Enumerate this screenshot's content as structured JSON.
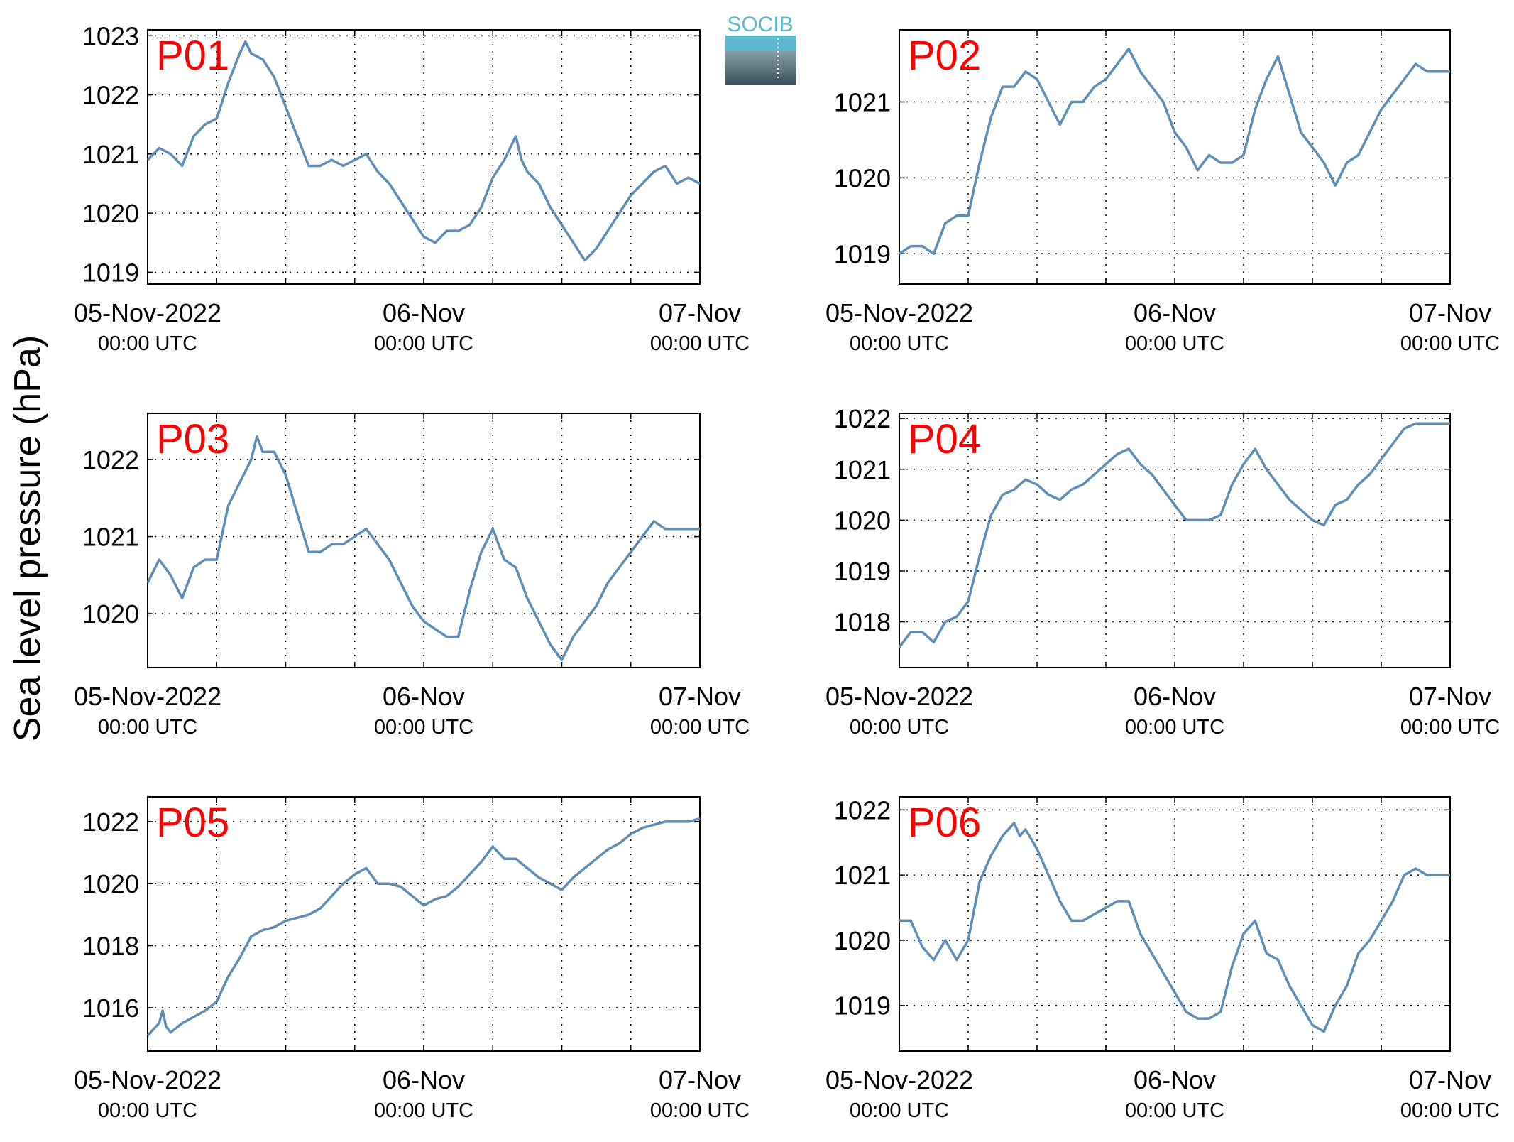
{
  "ylabel": "Sea level pressure (hPa)",
  "logo": {
    "text": "SOCIB",
    "color_top": "#5cb8cf",
    "color_bottom": "#3a4f5a"
  },
  "x_axis": {
    "ticks": [
      {
        "date": "05-Nov-2022",
        "time": "00:00 UTC"
      },
      {
        "date": "06-Nov",
        "time": "00:00 UTC"
      },
      {
        "date": "07-Nov",
        "time": "00:00 UTC"
      }
    ]
  },
  "chart_data": [
    {
      "type": "line",
      "panel": "P01",
      "line_color": "#5f8db5",
      "label_color": "#ff0000",
      "grid": true,
      "xlim": [
        0,
        48
      ],
      "ylim": [
        1018.8,
        1023.1
      ],
      "yticks": [
        1019,
        1020,
        1021,
        1022,
        1023
      ],
      "x": [
        0,
        1,
        2,
        3,
        4,
        5,
        6,
        7,
        8,
        8.5,
        9,
        10,
        11,
        12,
        13,
        14,
        15,
        16,
        17,
        18,
        19,
        20,
        21,
        22,
        23,
        24,
        25,
        26,
        27,
        28,
        29,
        30,
        31,
        32,
        32.5,
        33,
        34,
        35,
        36,
        37,
        38,
        39,
        40,
        41,
        42,
        43,
        44,
        45,
        46,
        47,
        48
      ],
      "y": [
        1020.9,
        1021.1,
        1021.0,
        1020.8,
        1021.3,
        1021.5,
        1021.6,
        1022.2,
        1022.7,
        1022.9,
        1022.7,
        1022.6,
        1022.3,
        1021.8,
        1021.3,
        1020.8,
        1020.8,
        1020.9,
        1020.8,
        1020.9,
        1021.0,
        1020.7,
        1020.5,
        1020.2,
        1019.9,
        1019.6,
        1019.5,
        1019.7,
        1019.7,
        1019.8,
        1020.1,
        1020.6,
        1020.9,
        1021.3,
        1020.9,
        1020.7,
        1020.5,
        1020.1,
        1019.8,
        1019.5,
        1019.2,
        1019.4,
        1019.7,
        1020.0,
        1020.3,
        1020.5,
        1020.7,
        1020.8,
        1020.5,
        1020.6,
        1020.5
      ]
    },
    {
      "type": "line",
      "panel": "P02",
      "line_color": "#5f8db5",
      "label_color": "#ff0000",
      "grid": true,
      "xlim": [
        0,
        48
      ],
      "ylim": [
        1018.6,
        1021.95
      ],
      "yticks": [
        1019,
        1020,
        1021
      ],
      "x": [
        0,
        1,
        2,
        3,
        4,
        5,
        6,
        7,
        8,
        9,
        10,
        11,
        12,
        13,
        14,
        15,
        16,
        17,
        18,
        19,
        20,
        21,
        22,
        23,
        24,
        25,
        26,
        27,
        28,
        29,
        30,
        31,
        32,
        33,
        34,
        35,
        36,
        37,
        38,
        39,
        40,
        41,
        42,
        43,
        44,
        45,
        46,
        47,
        48
      ],
      "y": [
        1019.0,
        1019.1,
        1019.1,
        1019.0,
        1019.4,
        1019.5,
        1019.5,
        1020.2,
        1020.8,
        1021.2,
        1021.2,
        1021.4,
        1021.3,
        1021.0,
        1020.7,
        1021.0,
        1021.0,
        1021.2,
        1021.3,
        1021.5,
        1021.7,
        1021.4,
        1021.2,
        1021.0,
        1020.6,
        1020.4,
        1020.1,
        1020.3,
        1020.2,
        1020.2,
        1020.3,
        1020.9,
        1021.3,
        1021.6,
        1021.1,
        1020.6,
        1020.4,
        1020.2,
        1019.9,
        1020.2,
        1020.3,
        1020.6,
        1020.9,
        1021.1,
        1021.3,
        1021.5,
        1021.4,
        1021.4,
        1021.4
      ]
    },
    {
      "type": "line",
      "panel": "P03",
      "line_color": "#5f8db5",
      "label_color": "#ff0000",
      "grid": true,
      "xlim": [
        0,
        48
      ],
      "ylim": [
        1019.3,
        1022.6
      ],
      "yticks": [
        1020,
        1021,
        1022
      ],
      "x": [
        0,
        1,
        2,
        3,
        4,
        5,
        6,
        7,
        8,
        9,
        9.5,
        10,
        11,
        12,
        13,
        14,
        15,
        16,
        17,
        18,
        19,
        20,
        21,
        22,
        23,
        24,
        25,
        26,
        27,
        28,
        29,
        30,
        31,
        32,
        33,
        34,
        35,
        36,
        37,
        38,
        39,
        40,
        41,
        42,
        43,
        44,
        45,
        46,
        47,
        48
      ],
      "y": [
        1020.4,
        1020.7,
        1020.5,
        1020.2,
        1020.6,
        1020.7,
        1020.7,
        1021.4,
        1021.7,
        1022.0,
        1022.3,
        1022.1,
        1022.1,
        1021.8,
        1021.3,
        1020.8,
        1020.8,
        1020.9,
        1020.9,
        1021.0,
        1021.1,
        1020.9,
        1020.7,
        1020.4,
        1020.1,
        1019.9,
        1019.8,
        1019.7,
        1019.7,
        1020.3,
        1020.8,
        1021.1,
        1020.7,
        1020.6,
        1020.2,
        1019.9,
        1019.6,
        1019.4,
        1019.7,
        1019.9,
        1020.1,
        1020.4,
        1020.6,
        1020.8,
        1021.0,
        1021.2,
        1021.1,
        1021.1,
        1021.1,
        1021.1
      ]
    },
    {
      "type": "line",
      "panel": "P04",
      "line_color": "#5f8db5",
      "label_color": "#ff0000",
      "grid": true,
      "xlim": [
        0,
        48
      ],
      "ylim": [
        1017.1,
        1022.1
      ],
      "yticks": [
        1018,
        1019,
        1020,
        1021,
        1022
      ],
      "x": [
        0,
        1,
        2,
        3,
        4,
        5,
        6,
        7,
        8,
        9,
        10,
        11,
        12,
        13,
        14,
        15,
        16,
        17,
        18,
        19,
        20,
        21,
        22,
        23,
        24,
        25,
        26,
        27,
        28,
        29,
        30,
        31,
        32,
        33,
        34,
        35,
        36,
        37,
        38,
        39,
        40,
        41,
        42,
        43,
        44,
        45,
        46,
        47,
        48
      ],
      "y": [
        1017.5,
        1017.8,
        1017.8,
        1017.6,
        1018.0,
        1018.1,
        1018.4,
        1019.3,
        1020.1,
        1020.5,
        1020.6,
        1020.8,
        1020.7,
        1020.5,
        1020.4,
        1020.6,
        1020.7,
        1020.9,
        1021.1,
        1021.3,
        1021.4,
        1021.1,
        1020.9,
        1020.6,
        1020.3,
        1020.0,
        1020.0,
        1020.0,
        1020.1,
        1020.7,
        1021.1,
        1021.4,
        1021.0,
        1020.7,
        1020.4,
        1020.2,
        1020.0,
        1019.9,
        1020.3,
        1020.4,
        1020.7,
        1020.9,
        1021.2,
        1021.5,
        1021.8,
        1021.9,
        1021.9,
        1021.9,
        1021.9
      ]
    },
    {
      "type": "line",
      "panel": "P05",
      "line_color": "#5f8db5",
      "label_color": "#ff0000",
      "grid": true,
      "xlim": [
        0,
        48
      ],
      "ylim": [
        1014.6,
        1022.8
      ],
      "yticks": [
        1016,
        1018,
        1020,
        1022
      ],
      "x": [
        0,
        1,
        1.3,
        1.6,
        2,
        3,
        4,
        5,
        6,
        7,
        8,
        9,
        10,
        11,
        12,
        13,
        14,
        15,
        16,
        17,
        18,
        19,
        20,
        21,
        22,
        23,
        24,
        25,
        26,
        27,
        28,
        29,
        30,
        31,
        32,
        33,
        34,
        35,
        36,
        37,
        38,
        39,
        40,
        41,
        42,
        43,
        44,
        45,
        46,
        47,
        48
      ],
      "y": [
        1015.1,
        1015.5,
        1015.9,
        1015.4,
        1015.2,
        1015.5,
        1015.7,
        1015.9,
        1016.2,
        1017.0,
        1017.6,
        1018.3,
        1018.5,
        1018.6,
        1018.8,
        1018.9,
        1019.0,
        1019.2,
        1019.6,
        1020.0,
        1020.3,
        1020.5,
        1020.0,
        1020.0,
        1019.9,
        1019.6,
        1019.3,
        1019.5,
        1019.6,
        1019.9,
        1020.3,
        1020.7,
        1021.2,
        1020.8,
        1020.8,
        1020.5,
        1020.2,
        1020.0,
        1019.8,
        1020.2,
        1020.5,
        1020.8,
        1021.1,
        1021.3,
        1021.6,
        1021.8,
        1021.9,
        1022.0,
        1022.0,
        1022.0,
        1022.1
      ]
    },
    {
      "type": "line",
      "panel": "P06",
      "line_color": "#5f8db5",
      "label_color": "#ff0000",
      "grid": true,
      "xlim": [
        0,
        48
      ],
      "ylim": [
        1018.3,
        1022.2
      ],
      "yticks": [
        1019,
        1020,
        1021,
        1022
      ],
      "x": [
        0,
        1,
        2,
        3,
        4,
        5,
        6,
        7,
        8,
        9,
        10,
        10.5,
        11,
        12,
        13,
        14,
        15,
        16,
        17,
        18,
        19,
        20,
        21,
        22,
        23,
        24,
        25,
        26,
        27,
        28,
        29,
        30,
        31,
        32,
        33,
        34,
        35,
        36,
        37,
        38,
        39,
        40,
        41,
        42,
        43,
        44,
        45,
        46,
        47,
        48
      ],
      "y": [
        1020.3,
        1020.3,
        1019.9,
        1019.7,
        1020.0,
        1019.7,
        1020.0,
        1020.9,
        1021.3,
        1021.6,
        1021.8,
        1021.6,
        1021.7,
        1021.4,
        1021.0,
        1020.6,
        1020.3,
        1020.3,
        1020.4,
        1020.5,
        1020.6,
        1020.6,
        1020.1,
        1019.8,
        1019.5,
        1019.2,
        1018.9,
        1018.8,
        1018.8,
        1018.9,
        1019.6,
        1020.1,
        1020.3,
        1019.8,
        1019.7,
        1019.3,
        1019.0,
        1018.7,
        1018.6,
        1019.0,
        1019.3,
        1019.8,
        1020.0,
        1020.3,
        1020.6,
        1021.0,
        1021.1,
        1021.0,
        1021.0,
        1021.0
      ]
    }
  ]
}
